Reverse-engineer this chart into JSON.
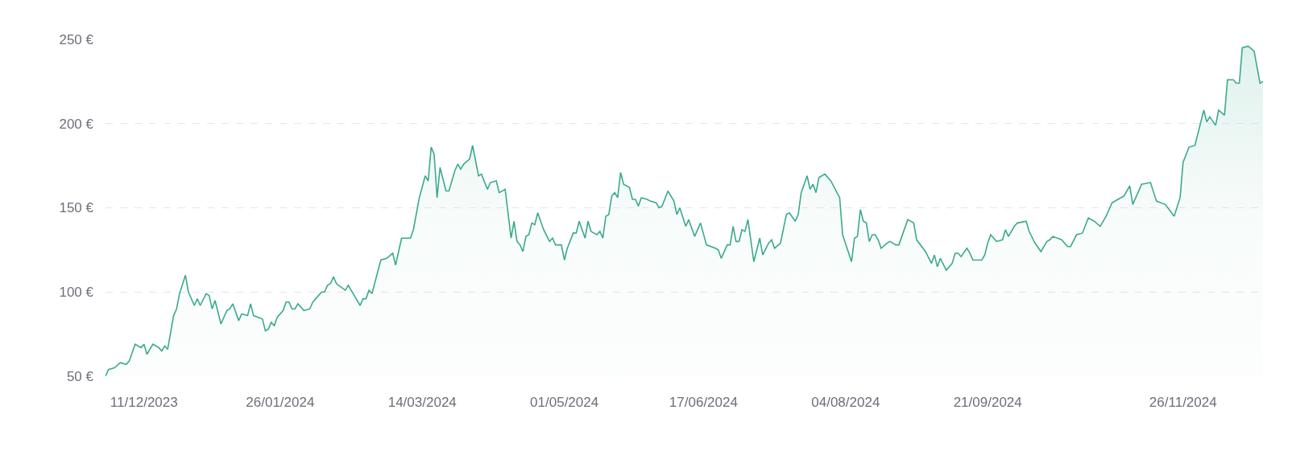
{
  "chart_data": {
    "type": "area",
    "xlim": [
      "2023-11-28",
      "2024-12-23"
    ],
    "xticks": [
      {
        "value": "2023-12-11",
        "label": "11/12/2023"
      },
      {
        "value": "2024-01-26",
        "label": "26/01/2024"
      },
      {
        "value": "2024-03-14",
        "label": "14/03/2024"
      },
      {
        "value": "2024-05-01",
        "label": "01/05/2024"
      },
      {
        "value": "2024-06-17",
        "label": "17/06/2024"
      },
      {
        "value": "2024-08-04",
        "label": "04/08/2024"
      },
      {
        "value": "2024-09-21",
        "label": "21/09/2024"
      },
      {
        "value": "2024-11-26",
        "label": "26/11/2024"
      }
    ],
    "ylim": [
      50,
      250
    ],
    "yticks": [
      {
        "value": 50,
        "label": "50 €"
      },
      {
        "value": 100,
        "label": "100 €"
      },
      {
        "value": 150,
        "label": "150 €"
      },
      {
        "value": 200,
        "label": "200 €"
      },
      {
        "value": 250,
        "label": "250 €"
      }
    ],
    "grid": "y",
    "line_style": "solid",
    "series": [
      {
        "color": "#3aaa8c",
        "x": [
          "2023-11-28",
          "2023-11-29",
          "2023-12-01",
          "2023-12-03",
          "2023-12-05",
          "2023-12-06",
          "2023-12-08",
          "2023-12-10",
          "2023-12-11",
          "2023-12-12",
          "2023-12-14",
          "2023-12-16",
          "2023-12-17",
          "2023-12-18",
          "2023-12-19",
          "2023-12-21",
          "2023-12-22",
          "2023-12-23",
          "2023-12-25",
          "2023-12-26",
          "2023-12-28",
          "2023-12-29",
          "2023-12-30",
          "2024-01-01",
          "2024-01-02",
          "2024-01-03",
          "2024-01-04",
          "2024-01-06",
          "2024-01-08",
          "2024-01-09",
          "2024-01-10",
          "2024-01-12",
          "2024-01-13",
          "2024-01-15",
          "2024-01-16",
          "2024-01-17",
          "2024-01-20",
          "2024-01-21",
          "2024-01-22",
          "2024-01-23",
          "2024-01-24",
          "2024-01-25",
          "2024-01-27",
          "2024-01-28",
          "2024-01-29",
          "2024-01-30",
          "2024-01-31",
          "2024-02-01",
          "2024-02-03",
          "2024-02-05",
          "2024-02-06",
          "2024-02-07",
          "2024-02-09",
          "2024-02-10",
          "2024-02-11",
          "2024-02-12",
          "2024-02-13",
          "2024-02-14",
          "2024-02-17",
          "2024-02-18",
          "2024-02-19",
          "2024-02-22",
          "2024-02-23",
          "2024-02-24",
          "2024-02-25",
          "2024-02-26",
          "2024-02-29",
          "2024-03-02",
          "2024-03-04",
          "2024-03-05",
          "2024-03-07",
          "2024-03-10",
          "2024-03-11",
          "2024-03-13",
          "2024-03-15",
          "2024-03-16",
          "2024-03-17",
          "2024-03-18",
          "2024-03-19",
          "2024-03-20",
          "2024-03-22",
          "2024-03-23",
          "2024-03-25",
          "2024-03-26",
          "2024-03-27",
          "2024-03-28",
          "2024-03-30",
          "2024-03-31",
          "2024-04-02",
          "2024-04-03",
          "2024-04-05",
          "2024-04-06",
          "2024-04-08",
          "2024-04-09",
          "2024-04-11",
          "2024-04-13",
          "2024-04-14",
          "2024-04-15",
          "2024-04-16",
          "2024-04-17",
          "2024-04-18",
          "2024-04-19",
          "2024-04-20",
          "2024-04-21",
          "2024-04-22",
          "2024-04-24",
          "2024-04-26",
          "2024-04-27",
          "2024-04-28",
          "2024-04-30",
          "2024-05-01",
          "2024-05-02",
          "2024-05-04",
          "2024-05-05",
          "2024-05-06",
          "2024-05-08",
          "2024-05-09",
          "2024-05-10",
          "2024-05-12",
          "2024-05-13",
          "2024-05-14",
          "2024-05-15",
          "2024-05-16",
          "2024-05-17",
          "2024-05-18",
          "2024-05-19",
          "2024-05-20",
          "2024-05-21",
          "2024-05-23",
          "2024-05-24",
          "2024-05-25",
          "2024-05-26",
          "2024-05-27",
          "2024-05-29",
          "2024-05-30",
          "2024-06-01",
          "2024-06-02",
          "2024-06-03",
          "2024-06-05",
          "2024-06-07",
          "2024-06-08",
          "2024-06-09",
          "2024-06-11",
          "2024-06-12",
          "2024-06-14",
          "2024-06-16",
          "2024-06-18",
          "2024-06-21",
          "2024-06-22",
          "2024-06-23",
          "2024-06-25",
          "2024-06-26",
          "2024-06-27",
          "2024-06-28",
          "2024-06-29",
          "2024-06-30",
          "2024-07-01",
          "2024-07-02",
          "2024-07-04",
          "2024-07-06",
          "2024-07-07",
          "2024-07-09",
          "2024-07-10",
          "2024-07-11",
          "2024-07-13",
          "2024-07-15",
          "2024-07-16",
          "2024-07-18",
          "2024-07-19",
          "2024-07-20",
          "2024-07-22",
          "2024-07-23",
          "2024-07-24",
          "2024-07-25",
          "2024-07-26",
          "2024-07-28",
          "2024-07-30",
          "2024-08-02",
          "2024-08-03",
          "2024-08-06",
          "2024-08-07",
          "2024-08-08",
          "2024-08-09",
          "2024-08-10",
          "2024-08-11",
          "2024-08-12",
          "2024-08-13",
          "2024-08-14",
          "2024-08-15",
          "2024-08-16",
          "2024-08-18",
          "2024-08-19",
          "2024-08-21",
          "2024-08-22",
          "2024-08-25",
          "2024-08-27",
          "2024-08-28",
          "2024-08-31",
          "2024-09-02",
          "2024-09-03",
          "2024-09-04",
          "2024-09-05",
          "2024-09-07",
          "2024-09-09",
          "2024-09-10",
          "2024-09-11",
          "2024-09-12",
          "2024-09-14",
          "2024-09-15",
          "2024-09-16",
          "2024-09-19",
          "2024-09-20",
          "2024-09-21",
          "2024-09-22",
          "2024-09-24",
          "2024-09-26",
          "2024-09-27",
          "2024-09-28",
          "2024-09-30",
          "2024-10-01",
          "2024-10-04",
          "2024-10-05",
          "2024-10-07",
          "2024-10-09",
          "2024-10-11",
          "2024-10-12",
          "2024-10-13",
          "2024-10-16",
          "2024-10-18",
          "2024-10-19",
          "2024-10-21",
          "2024-10-23",
          "2024-10-25",
          "2024-10-27",
          "2024-10-29",
          "2024-10-31",
          "2024-11-02",
          "2024-11-04",
          "2024-11-06",
          "2024-11-08",
          "2024-11-09",
          "2024-11-12",
          "2024-11-15",
          "2024-11-17",
          "2024-11-20",
          "2024-11-23",
          "2024-11-25",
          "2024-11-26",
          "2024-11-28",
          "2024-11-30",
          "2024-12-03",
          "2024-12-04",
          "2024-12-05",
          "2024-12-07",
          "2024-12-08",
          "2024-12-10",
          "2024-12-11",
          "2024-12-13",
          "2024-12-14",
          "2024-12-15",
          "2024-12-16",
          "2024-12-18",
          "2024-12-20",
          "2024-12-22",
          "2024-12-23"
        ],
        "values": [
          50,
          54,
          55,
          58,
          57,
          59,
          69,
          67,
          69,
          63,
          69,
          67,
          65,
          68,
          66,
          86,
          90,
          99,
          110,
          100,
          92,
          96,
          92,
          99,
          98,
          90,
          95,
          81,
          89,
          90,
          93,
          83,
          87,
          86,
          93,
          86,
          84,
          77,
          78,
          82,
          80,
          85,
          89,
          94,
          94,
          90,
          90,
          93,
          89,
          90,
          94,
          96,
          100,
          100,
          104,
          105,
          109,
          105,
          101,
          104,
          101,
          92,
          96,
          96,
          101,
          99,
          119,
          120,
          123,
          116,
          132,
          132,
          137,
          156,
          169,
          166,
          186,
          182,
          156,
          174,
          160,
          160,
          172,
          176,
          173,
          176,
          179,
          187,
          169,
          170,
          161,
          165,
          166,
          159,
          161,
          132,
          142,
          130,
          128,
          124,
          133,
          134,
          141,
          140,
          147,
          137,
          130,
          132,
          128,
          128,
          119,
          126,
          135,
          135,
          142,
          132,
          142,
          136,
          134,
          136,
          132,
          145,
          146,
          157,
          159,
          156,
          171,
          164,
          162,
          155,
          155,
          151,
          156,
          155,
          154,
          153,
          150,
          151,
          160,
          154,
          146,
          150,
          139,
          143,
          133,
          141,
          128,
          126,
          125,
          120,
          128,
          128,
          139,
          130,
          130,
          137,
          136,
          143,
          118,
          132,
          122,
          129,
          131,
          126,
          129,
          146,
          147,
          142,
          146,
          159,
          169,
          161,
          164,
          159,
          168,
          170,
          166,
          156,
          134,
          118,
          132,
          133,
          149,
          142,
          141,
          130,
          134,
          134,
          131,
          126,
          129,
          130,
          128,
          128,
          143,
          141,
          131,
          124,
          117,
          122,
          115,
          120,
          113,
          117,
          123,
          123,
          121,
          126,
          123,
          119,
          119,
          122,
          129,
          134,
          130,
          131,
          137,
          133,
          139,
          141,
          142,
          136,
          129,
          124,
          130,
          131,
          133,
          131,
          127,
          127,
          134,
          135,
          144,
          142,
          139,
          145,
          153,
          155,
          157,
          163,
          152,
          164,
          165,
          154,
          152,
          145,
          156,
          177,
          186,
          187,
          208,
          201,
          204,
          199,
          208,
          205,
          226,
          226,
          224,
          224,
          245,
          246,
          243,
          224,
          225
        ]
      }
    ]
  }
}
